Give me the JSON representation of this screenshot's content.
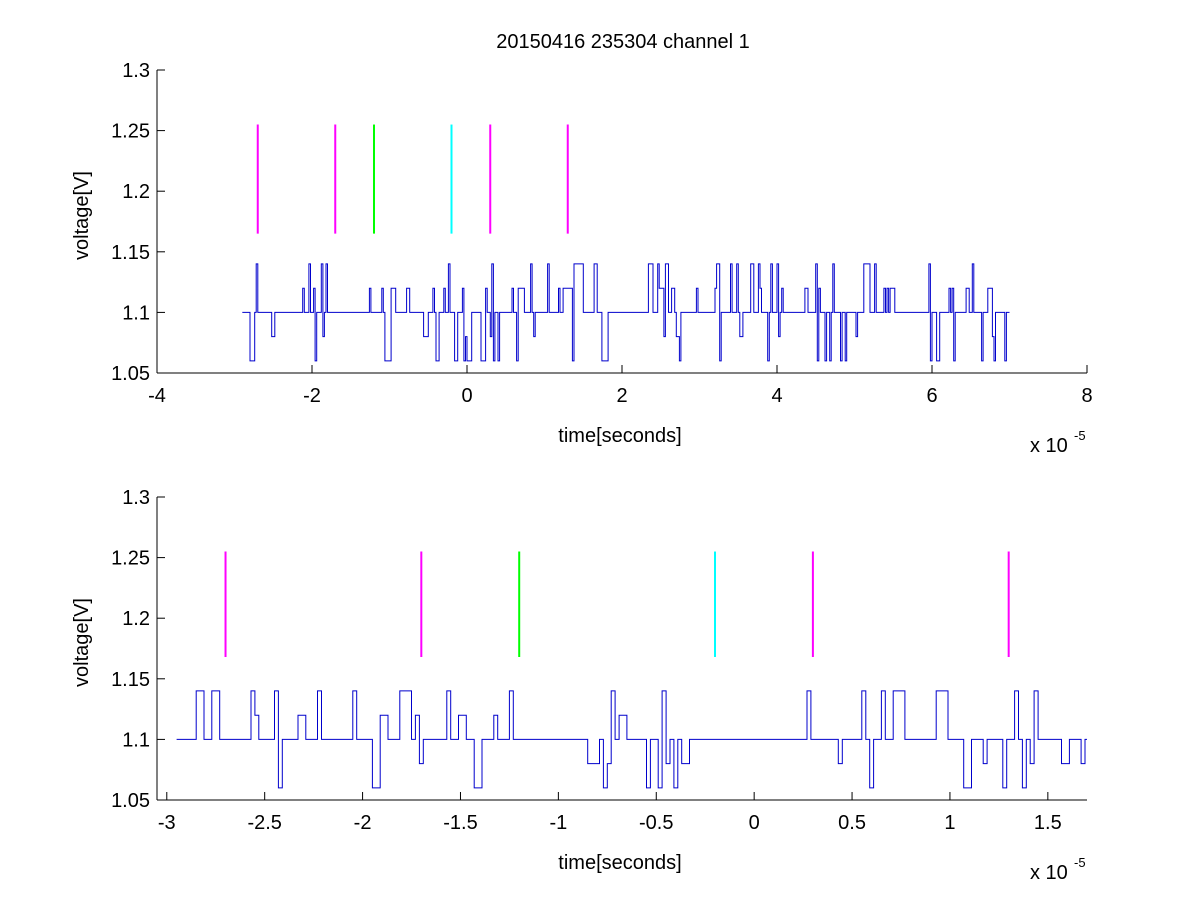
{
  "figure": {
    "title": "20150416 235304 channel 1"
  },
  "chart_data": [
    {
      "type": "line",
      "title": "20150416 235304 channel 1",
      "xlabel": "time[seconds]",
      "ylabel": "voltage[V]",
      "x_multiplier_label": "x 10",
      "x_multiplier_exponent": "-5",
      "xlim": [
        -4,
        8
      ],
      "ylim": [
        1.05,
        1.3
      ],
      "xticks": [
        "-4",
        "-2",
        "0",
        "2",
        "4",
        "6",
        "8"
      ],
      "xtick_values": [
        -4,
        -2,
        0,
        2,
        4,
        6,
        8
      ],
      "yticks": [
        "1.05",
        "1.1",
        "1.15",
        "1.2",
        "1.25",
        "1.3"
      ],
      "ytick_values": [
        1.05,
        1.1,
        1.15,
        1.2,
        1.25,
        1.3
      ],
      "grid": false,
      "signal": {
        "color": "#0000cc",
        "x_range": [
          -2.9,
          7.0
        ],
        "baseline": 1.1,
        "levels": [
          1.06,
          1.08,
          1.1,
          1.12,
          1.14
        ]
      },
      "markers": [
        {
          "x": -2.7,
          "color": "#ff00ff",
          "y_range": [
            1.165,
            1.255
          ]
        },
        {
          "x": -1.7,
          "color": "#ff00ff",
          "y_range": [
            1.165,
            1.255
          ]
        },
        {
          "x": -1.2,
          "color": "#00ff00",
          "y_range": [
            1.165,
            1.255
          ]
        },
        {
          "x": -0.2,
          "color": "#00ffff",
          "y_range": [
            1.165,
            1.255
          ]
        },
        {
          "x": 0.3,
          "color": "#ff00ff",
          "y_range": [
            1.165,
            1.255
          ]
        },
        {
          "x": 1.3,
          "color": "#ff00ff",
          "y_range": [
            1.165,
            1.255
          ]
        }
      ]
    },
    {
      "type": "line",
      "xlabel": "time[seconds]",
      "ylabel": "voltage[V]",
      "x_multiplier_label": "x 10",
      "x_multiplier_exponent": "-5",
      "xlim": [
        -3.05,
        1.7
      ],
      "ylim": [
        1.05,
        1.3
      ],
      "xticks": [
        "-3",
        "-2.5",
        "-2",
        "-1.5",
        "-1",
        "-0.5",
        "0",
        "0.5",
        "1",
        "1.5"
      ],
      "xtick_values": [
        -3,
        -2.5,
        -2,
        -1.5,
        -1,
        -0.5,
        0,
        0.5,
        1,
        1.5
      ],
      "yticks": [
        "1.05",
        "1.1",
        "1.15",
        "1.2",
        "1.25",
        "1.3"
      ],
      "ytick_values": [
        1.05,
        1.1,
        1.15,
        1.2,
        1.25,
        1.3
      ],
      "grid": false,
      "signal": {
        "color": "#0000cc",
        "x_range": [
          -2.95,
          1.7
        ],
        "baseline": 1.1,
        "levels": [
          1.06,
          1.08,
          1.1,
          1.12,
          1.14
        ]
      },
      "markers": [
        {
          "x": -2.7,
          "color": "#ff00ff",
          "y_range": [
            1.168,
            1.255
          ]
        },
        {
          "x": -1.7,
          "color": "#ff00ff",
          "y_range": [
            1.168,
            1.255
          ]
        },
        {
          "x": -1.2,
          "color": "#00ff00",
          "y_range": [
            1.168,
            1.255
          ]
        },
        {
          "x": -0.2,
          "color": "#00ffff",
          "y_range": [
            1.168,
            1.255
          ]
        },
        {
          "x": 0.3,
          "color": "#ff00ff",
          "y_range": [
            1.168,
            1.255
          ]
        },
        {
          "x": 1.3,
          "color": "#ff00ff",
          "y_range": [
            1.168,
            1.255
          ]
        }
      ]
    }
  ]
}
